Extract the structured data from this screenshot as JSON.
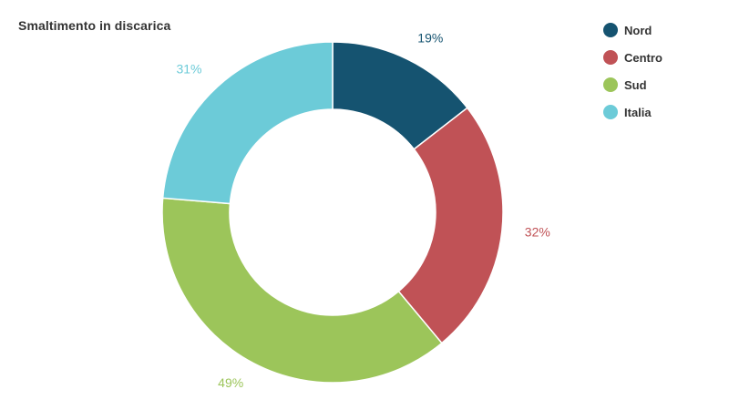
{
  "chart_data": {
    "type": "pie",
    "title": "Smaltimento in discarica",
    "legend_position": "top-right",
    "slices": [
      {
        "name": "Nord",
        "value": 19,
        "label": "19%",
        "color": "#155370"
      },
      {
        "name": "Centro",
        "value": 32,
        "label": "32%",
        "color": "#c05256"
      },
      {
        "name": "Sud",
        "value": 49,
        "label": "49%",
        "color": "#9cc55a"
      },
      {
        "name": "Italia",
        "value": 31,
        "label": "31%",
        "color": "#6ccbd8"
      }
    ]
  }
}
